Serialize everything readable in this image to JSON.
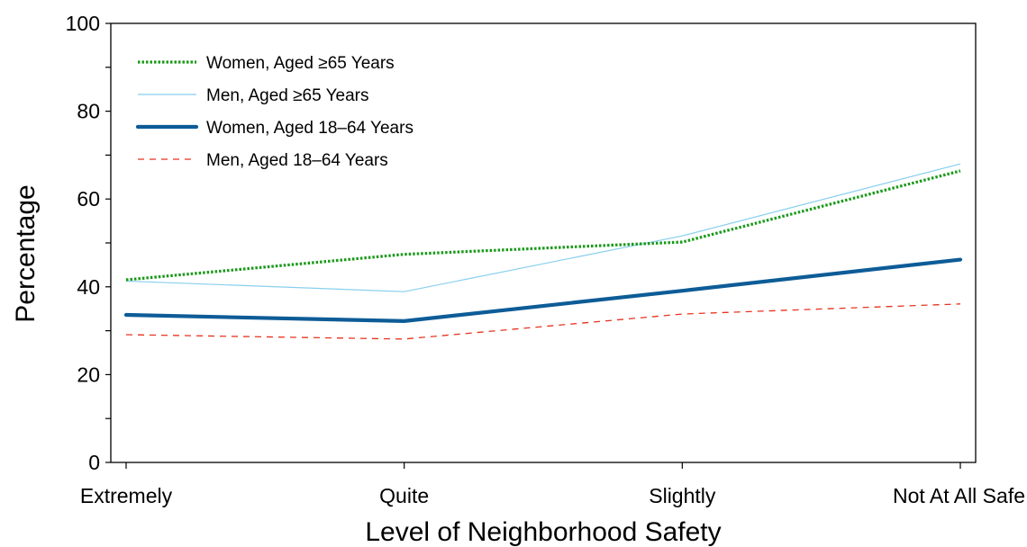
{
  "chart_data": {
    "type": "line",
    "title": "",
    "xlabel": "Level of Neighborhood Safety",
    "ylabel": "Percentage",
    "categories": [
      "Extremely",
      "Quite",
      "Slightly",
      "Not At All Safe"
    ],
    "ylim": [
      0,
      100
    ],
    "yticks": [
      0,
      20,
      40,
      60,
      80,
      100
    ],
    "grid": false,
    "legend_position": "top-left",
    "series": [
      {
        "name": "Women, Aged ≥65 Years",
        "values": [
          41.6,
          47.4,
          50.2,
          66.4
        ],
        "color": "#1a9a1a",
        "style": "dotted"
      },
      {
        "name": "Men, Aged ≥65 Years",
        "values": [
          41.3,
          38.9,
          51.6,
          68.0
        ],
        "color": "#87cfee",
        "style": "solid-thin"
      },
      {
        "name": "Women, Aged 18–64 Years",
        "values": [
          33.6,
          32.2,
          39.1,
          46.2
        ],
        "color": "#0d5c97",
        "style": "solid-thick"
      },
      {
        "name": "Men, Aged 18–64 Years",
        "values": [
          29.1,
          28.1,
          33.8,
          36.1
        ],
        "color": "#e8321e",
        "style": "dashed"
      }
    ]
  }
}
